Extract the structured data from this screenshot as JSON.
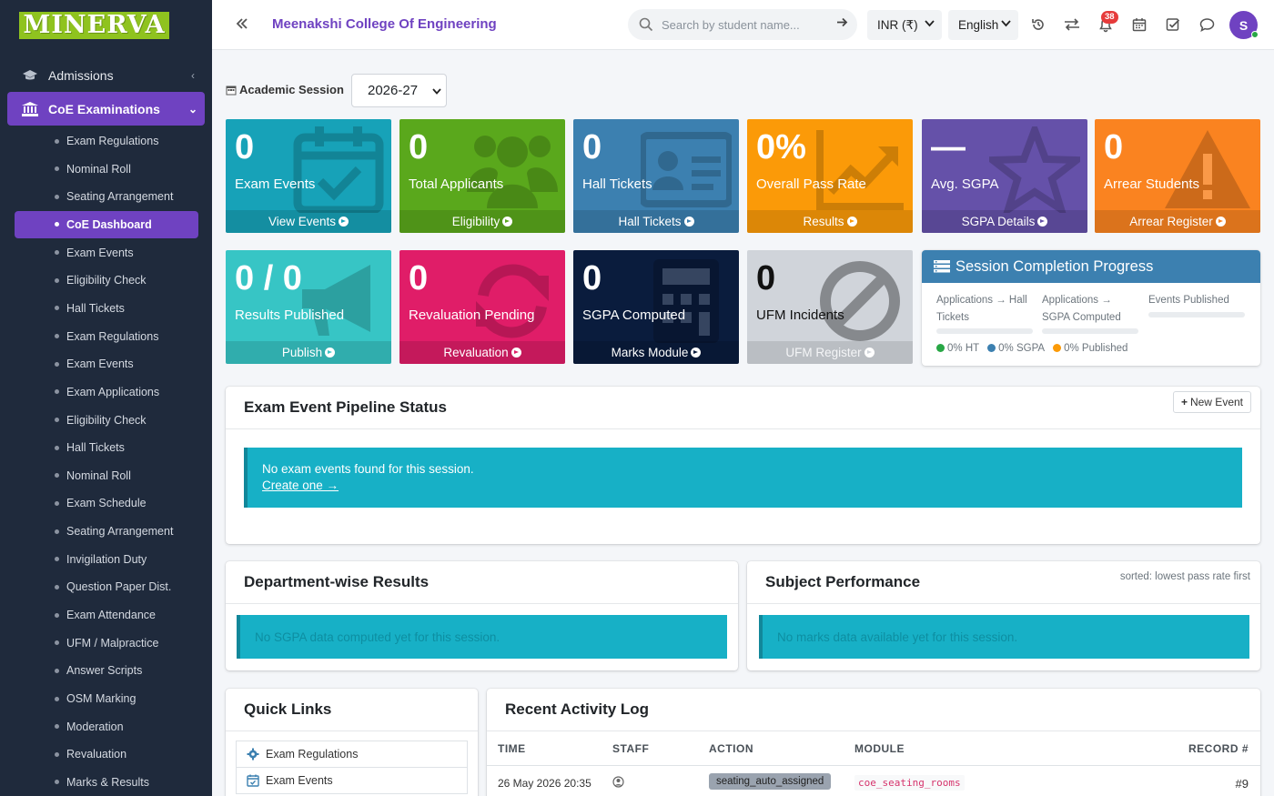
{
  "app": {
    "logo_text": "MINERVA",
    "college_name": "Meenakshi College Of Engineering"
  },
  "sidebar": {
    "top_items": [
      {
        "label": "Admissions",
        "icon": "graduation-cap-icon",
        "chevron": "‹"
      },
      {
        "label": "CoE Examinations",
        "icon": "university-icon",
        "chevron": "⌄"
      }
    ],
    "sub_items": [
      "Exam Regulations",
      "Nominal Roll",
      "Seating Arrangement",
      "CoE Dashboard",
      "Exam Events",
      "Eligibility Check",
      "Hall Tickets",
      "Exam Regulations",
      "Exam Events",
      "Exam Applications",
      "Eligibility Check",
      "Hall Tickets",
      "Nominal Roll",
      "Exam Schedule",
      "Seating Arrangement",
      "Invigilation Duty",
      "Question Paper Dist.",
      "Exam Attendance",
      "UFM / Malpractice",
      "Answer Scripts",
      "OSM Marking",
      "Moderation",
      "Revaluation",
      "Marks & Results"
    ],
    "active_sub_index": 3
  },
  "topbar": {
    "search_placeholder": "Search by student name...",
    "currency": "INR (₹)",
    "language": "English",
    "notification_count": "38",
    "avatar_initial": "S"
  },
  "session": {
    "label": "Academic Session",
    "value": "2026-27"
  },
  "stats_row1": [
    {
      "value": "0",
      "label": "Exam Events",
      "footer": "View Events",
      "color": "#17a2b8",
      "icon": "calendar-check-icon"
    },
    {
      "value": "0",
      "label": "Total Applicants",
      "footer": "Eligibility",
      "color": "#5aa81c",
      "icon": "users-icon"
    },
    {
      "value": "0",
      "label": "Hall Tickets",
      "footer": "Hall Tickets",
      "color": "#3c80b0",
      "icon": "id-card-icon"
    },
    {
      "value": "0%",
      "label": "Overall Pass Rate",
      "footer": "Results",
      "color": "#fb9a08",
      "icon": "chart-line-icon"
    },
    {
      "value": "—",
      "label": "Avg. SGPA",
      "footer": "SGPA Details",
      "color": "#6551a9",
      "icon": "star-icon"
    },
    {
      "value": "0",
      "label": "Arrear Students",
      "footer": "Arrear Register",
      "color": "#fa8320",
      "icon": "warning-icon"
    }
  ],
  "stats_row2": [
    {
      "value": "0 / 0",
      "label": "Results Published",
      "footer": "Publish",
      "color": "#37c5c5",
      "icon": "megaphone-icon"
    },
    {
      "value": "0",
      "label": "Revaluation Pending",
      "footer": "Revaluation",
      "color": "#e01d68",
      "icon": "sync-icon"
    },
    {
      "value": "0",
      "label": "SGPA Computed",
      "footer": "Marks Module",
      "color": "#0a1c3d",
      "icon": "calculator-icon"
    },
    {
      "value": "0",
      "label": "UFM Incidents",
      "footer": "UFM Register",
      "color": "#d0d4da",
      "icon": "ban-icon"
    }
  ],
  "progress": {
    "title": "Session Completion Progress",
    "columns": [
      "Applications → Hall Tickets",
      "Applications → SGPA Computed",
      "Events Published"
    ],
    "values": [
      0,
      0,
      0
    ],
    "legend": [
      {
        "label": "0% HT",
        "color": "#28a745"
      },
      {
        "label": "0% SGPA",
        "color": "#3c80b0"
      },
      {
        "label": "0% Published",
        "color": "#fb9a08"
      }
    ]
  },
  "pipeline": {
    "title": "Exam Event Pipeline Status",
    "new_event": "New Event",
    "message": "No exam events found for this session.",
    "create_link": "Create one →"
  },
  "dept": {
    "title": "Department-wise Results",
    "message": "No SGPA data computed yet for this session."
  },
  "subject": {
    "title": "Subject Performance",
    "note": "sorted: lowest pass rate first",
    "message": "No marks data available yet for this session."
  },
  "quick_links": {
    "title": "Quick Links",
    "items": [
      "Exam Regulations",
      "Exam Events"
    ]
  },
  "activity": {
    "title": "Recent Activity Log",
    "headers": [
      "TIME",
      "STAFF",
      "ACTION",
      "MODULE",
      "RECORD #"
    ],
    "rows": [
      {
        "time": "26 May 2026 20:35",
        "action": "seating_auto_assigned",
        "module": "coe_seating_rooms",
        "record": "#9"
      }
    ]
  }
}
